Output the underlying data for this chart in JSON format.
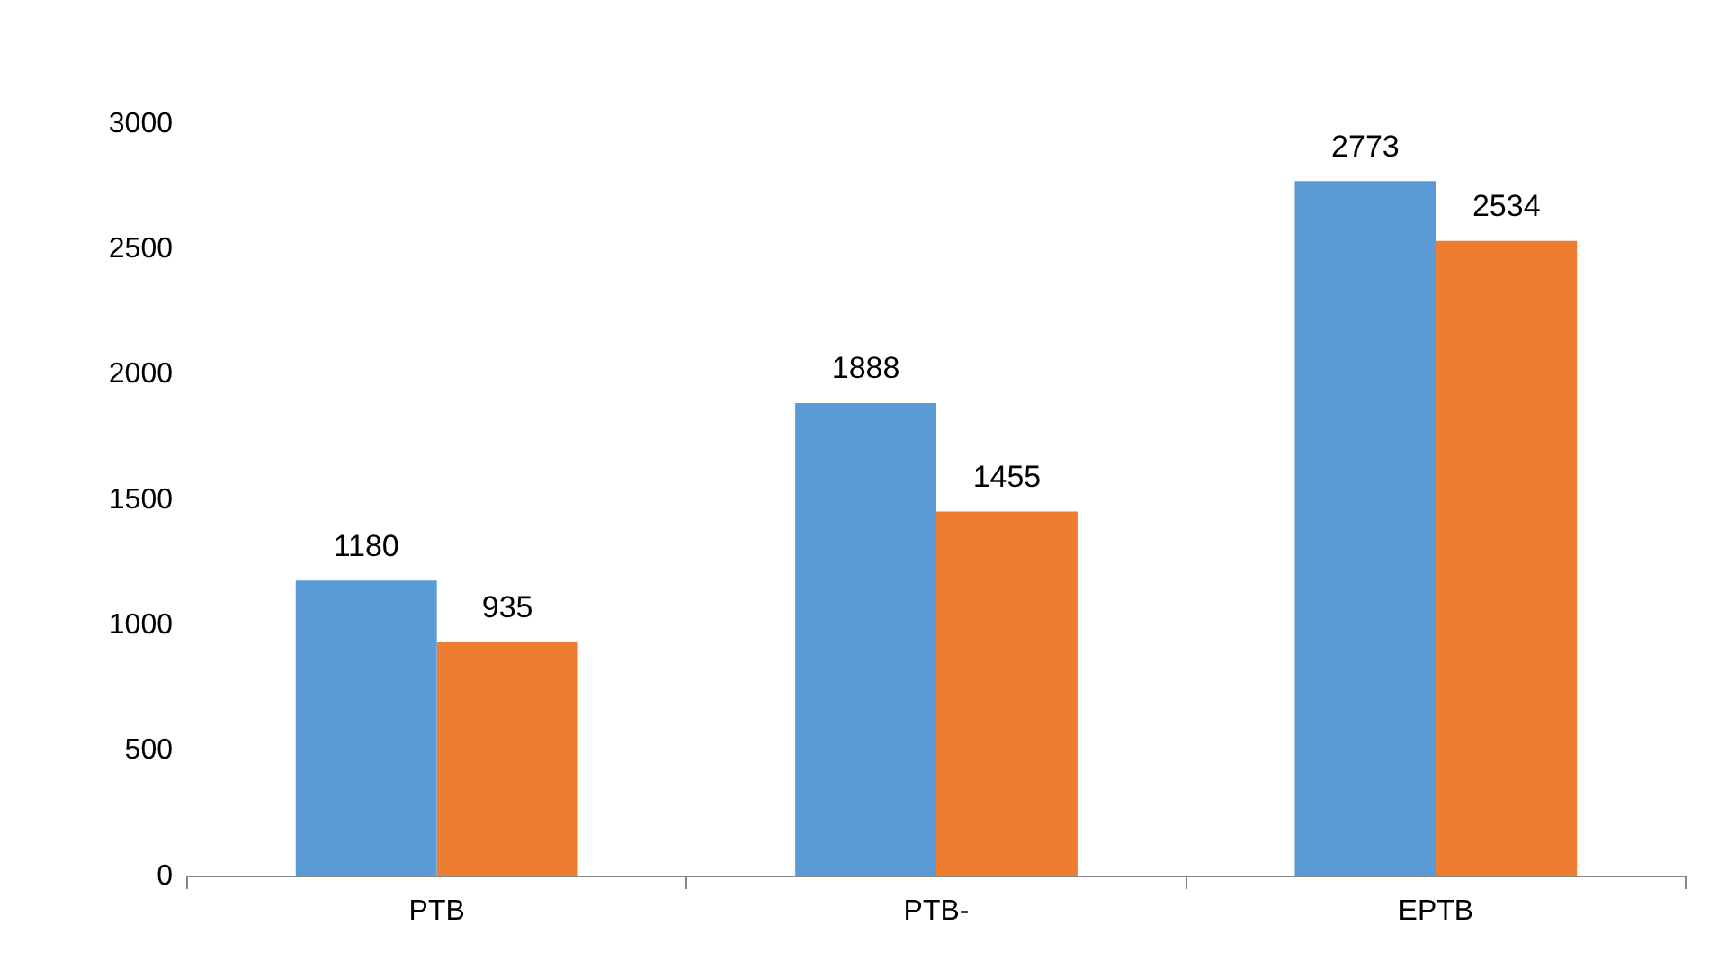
{
  "chart_data": {
    "type": "bar",
    "categories": [
      "PTB",
      "PTB-",
      "EPTB"
    ],
    "series": [
      {
        "color": "#5b9bd5",
        "values": [
          1180,
          1888,
          2773
        ]
      },
      {
        "color": "#ed7d31",
        "values": [
          935,
          1455,
          2534
        ]
      }
    ],
    "ylim": [
      0,
      3000
    ],
    "yticks": [
      0,
      500,
      1000,
      1500,
      2000,
      2500,
      3000
    ],
    "grid": false,
    "legend": false,
    "data_labels": true
  }
}
